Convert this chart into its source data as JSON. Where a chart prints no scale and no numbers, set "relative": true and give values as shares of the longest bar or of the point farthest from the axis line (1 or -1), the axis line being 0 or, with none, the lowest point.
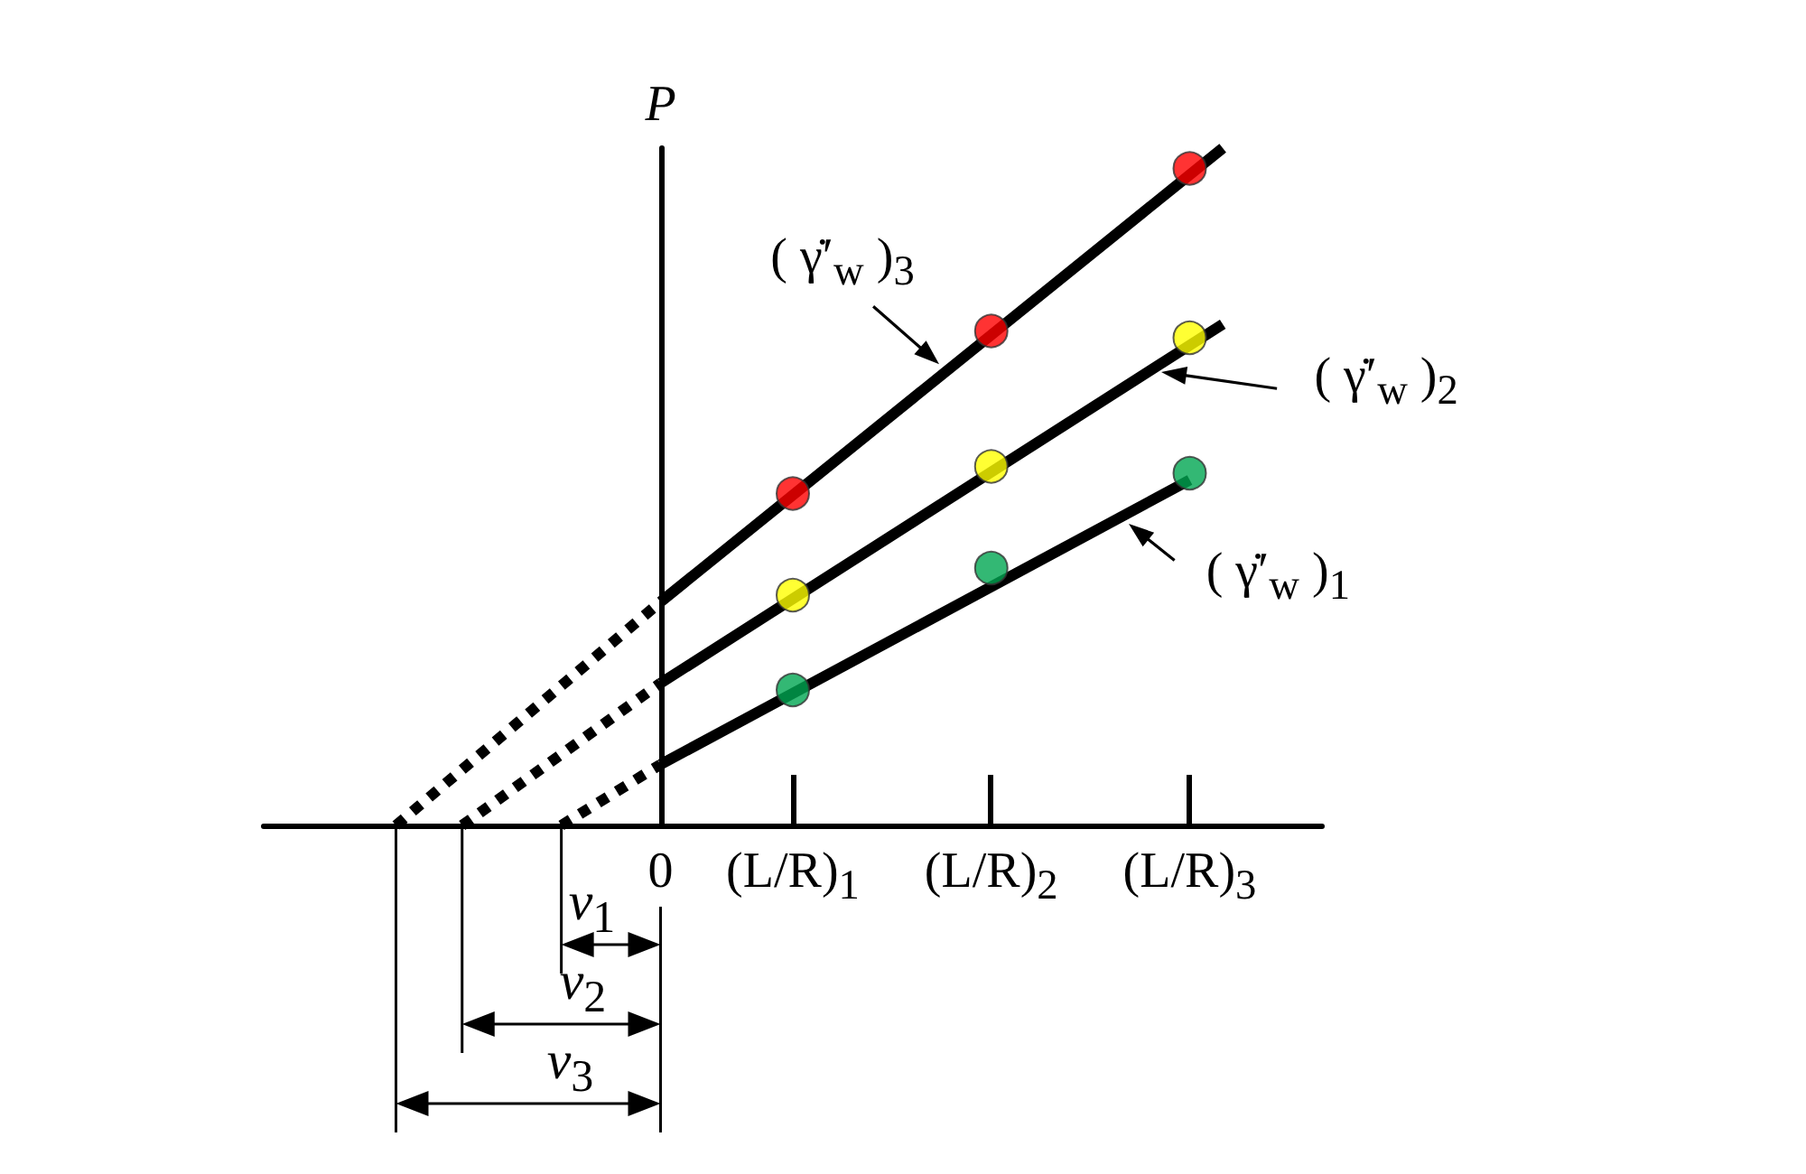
{
  "chart_data": {
    "type": "line",
    "relative": true,
    "ylabel": "P",
    "categories": [
      null,
      null,
      null,
      null,
      null,
      null,
      null,
      null,
      null,
      null,
      null,
      null,
      "0",
      null,
      null,
      null,
      "(L/R)$_{1}$",
      null,
      null,
      null,
      null,
      null,
      "(L/R)$_{2}$",
      null,
      null,
      null,
      null,
      null,
      "(L/R)$_{3}$",
      null,
      null,
      null,
      null
    ],
    "line_style": "solid",
    "series": [
      {
        "color": "#000000",
        "values": [
          null,
          null,
          null,
          null,
          null,
          null,
          null,
          null,
          null,
          null,
          null,
          null,
          0.33,
          null,
          null,
          null,
          null,
          null,
          null,
          null,
          null,
          null,
          null,
          null,
          null,
          null,
          null,
          null,
          null,
          1,
          null,
          null,
          null
        ]
      },
      {
        "color": "#000000",
        "values": [
          null,
          null,
          null,
          null,
          null,
          null,
          null,
          null,
          null,
          null,
          null,
          null,
          0.21,
          null,
          null,
          null,
          null,
          null,
          null,
          null,
          null,
          null,
          null,
          null,
          null,
          null,
          null,
          null,
          null,
          0.74,
          null,
          null,
          null
        ]
      },
      {
        "color": "#000000",
        "values": [
          null,
          null,
          null,
          null,
          null,
          null,
          null,
          null,
          null,
          null,
          null,
          null,
          0.09,
          null,
          null,
          null,
          null,
          null,
          null,
          null,
          null,
          null,
          null,
          null,
          null,
          null,
          null,
          null,
          0.51,
          null,
          null,
          null,
          null
        ]
      },
      {
        "color": "#000000",
        "line_style": "dotted",
        "values": [
          null,
          null,
          null,
          null,
          0,
          null,
          null,
          null,
          null,
          null,
          null,
          null,
          0.33,
          null,
          null,
          null,
          null,
          null,
          null,
          null,
          null,
          null,
          null,
          null,
          null,
          null,
          null,
          null,
          null,
          null,
          null,
          null,
          null
        ]
      },
      {
        "color": "#000000",
        "line_style": "dotted",
        "values": [
          null,
          null,
          null,
          null,
          null,
          null,
          0,
          null,
          null,
          null,
          null,
          null,
          0.21,
          null,
          null,
          null,
          null,
          null,
          null,
          null,
          null,
          null,
          null,
          null,
          null,
          null,
          null,
          null,
          null,
          null,
          null,
          null,
          null
        ]
      },
      {
        "color": "#000000",
        "line_style": "dotted",
        "values": [
          null,
          null,
          null,
          null,
          null,
          null,
          null,
          null,
          null,
          0,
          null,
          null,
          0.09,
          null,
          null,
          null,
          null,
          null,
          null,
          null,
          null,
          null,
          null,
          null,
          null,
          null,
          null,
          null,
          null,
          null,
          null,
          null,
          null
        ]
      },
      {
        "type": "scatter",
        "marker": "circle",
        "color": "#ff0000",
        "values": [
          null,
          null,
          null,
          null,
          null,
          null,
          null,
          null,
          null,
          null,
          null,
          null,
          null,
          null,
          null,
          null,
          0.49,
          null,
          null,
          null,
          null,
          null,
          0.73,
          null,
          null,
          null,
          null,
          null,
          0.97,
          null,
          null,
          null,
          null
        ]
      },
      {
        "type": "scatter",
        "marker": "circle",
        "color": "#ffff00",
        "values": [
          null,
          null,
          null,
          null,
          null,
          null,
          null,
          null,
          null,
          null,
          null,
          null,
          null,
          null,
          null,
          null,
          0.34,
          null,
          null,
          null,
          null,
          null,
          0.53,
          null,
          null,
          null,
          null,
          null,
          0.72,
          null,
          null,
          null,
          null
        ]
      },
      {
        "type": "scatter",
        "marker": "circle",
        "color": "#00a651",
        "values": [
          null,
          null,
          null,
          null,
          null,
          null,
          null,
          null,
          null,
          null,
          null,
          null,
          null,
          null,
          null,
          null,
          0.2,
          null,
          null,
          null,
          null,
          null,
          0.38,
          null,
          null,
          null,
          null,
          null,
          0.52,
          null,
          null,
          null,
          null
        ]
      }
    ],
    "annotations": [
      "( γ̇′$_{w}$ )$_{3}$",
      "( γ̇′$_{w}$ )$_{2}$",
      "( γ̇′$_{w}$ )$_{1}$",
      "v$_{1}$",
      "v$_{2}$",
      "v$_{3}$"
    ]
  }
}
